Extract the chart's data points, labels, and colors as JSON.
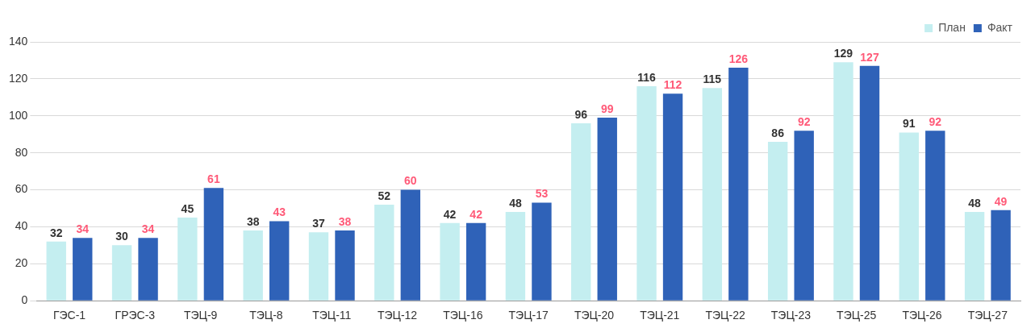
{
  "chart_data": {
    "type": "bar",
    "categories": [
      "ГЭС-1",
      "ГРЭС-3",
      "ТЭЦ-9",
      "ТЭЦ-8",
      "ТЭЦ-11",
      "ТЭЦ-12",
      "ТЭЦ-16",
      "ТЭЦ-17",
      "ТЭЦ-20",
      "ТЭЦ-21",
      "ТЭЦ-22",
      "ТЭЦ-23",
      "ТЭЦ-25",
      "ТЭЦ-26",
      "ТЭЦ-27"
    ],
    "series": [
      {
        "name": "План",
        "color": "#c4eef0",
        "values": [
          32,
          30,
          45,
          38,
          37,
          52,
          42,
          48,
          96,
          116,
          115,
          86,
          129,
          91,
          48
        ]
      },
      {
        "name": "Факт",
        "color": "#2f62b8",
        "values": [
          34,
          34,
          61,
          43,
          38,
          60,
          42,
          53,
          99,
          112,
          126,
          92,
          127,
          92,
          49
        ]
      }
    ],
    "ylim": [
      0,
      140
    ],
    "yticks": [
      0,
      20,
      40,
      60,
      80,
      100,
      120,
      140
    ],
    "grid": "y",
    "legend": "top right",
    "data_labels": true
  }
}
